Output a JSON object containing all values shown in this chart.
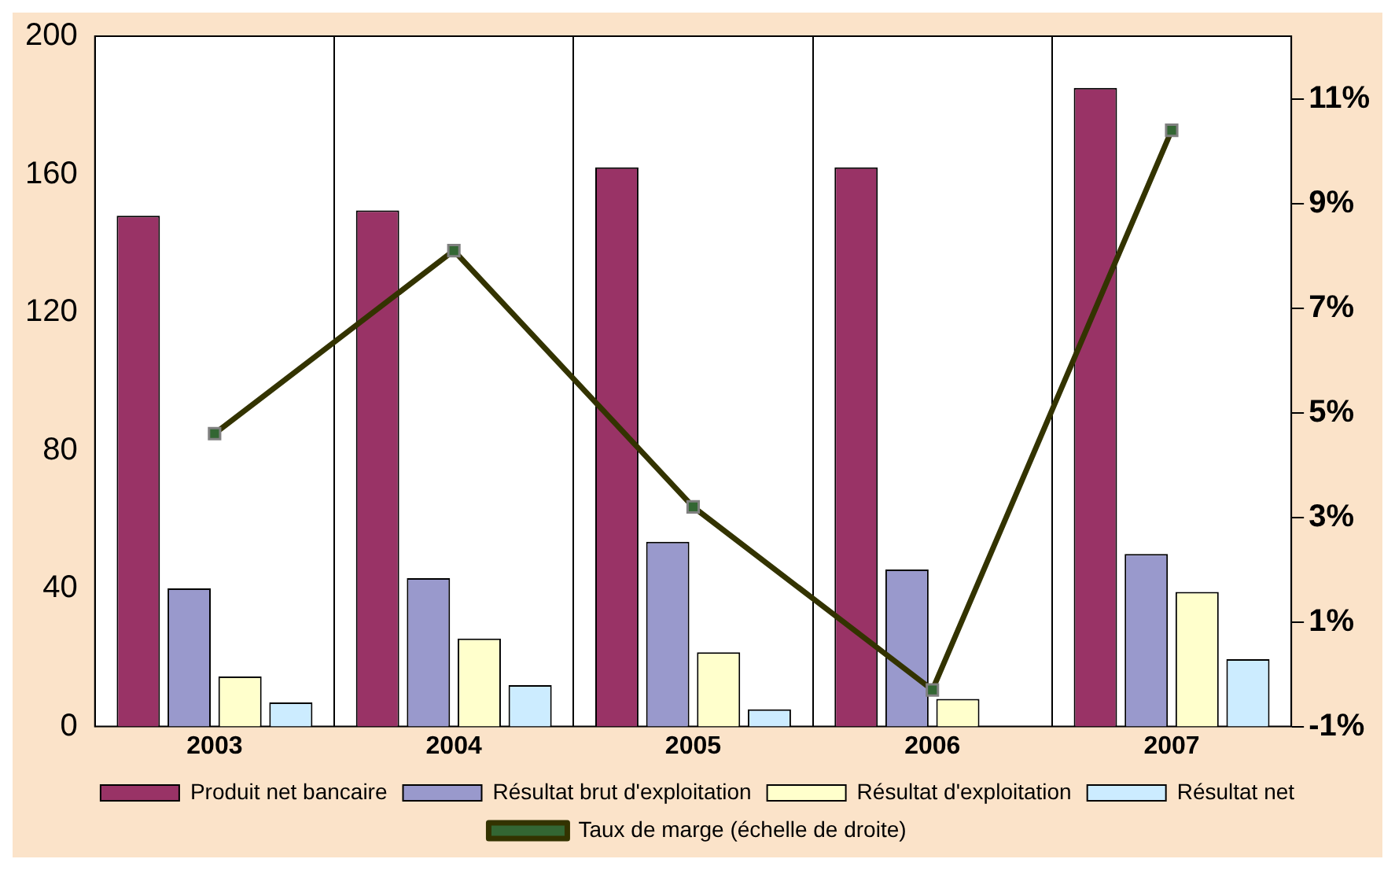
{
  "chart_data": {
    "type": "bar",
    "categories": [
      "2003",
      "2004",
      "2005",
      "2006",
      "2007"
    ],
    "series": [
      {
        "name": "Produit net bancaire",
        "color": "#993366",
        "values": [
          148,
          149.5,
          162,
          162,
          185
        ]
      },
      {
        "name": "Résultat brut d'exploitation",
        "color": "#9999cc",
        "values": [
          40,
          43,
          53.5,
          45.5,
          50
        ]
      },
      {
        "name": "Résultat d'exploitation",
        "color": "#ffffcc",
        "values": [
          14.5,
          25.5,
          21.5,
          8,
          39
        ]
      },
      {
        "name": "Résultat net",
        "color": "#ccecff",
        "values": [
          7,
          12,
          5,
          0,
          19.5
        ]
      },
      {
        "name": "Taux de marge (échelle de droite)",
        "type": "line",
        "axis": "y2",
        "color": "#333300",
        "marker": "square",
        "values": [
          4.6,
          8.1,
          3.2,
          -0.3,
          10.4
        ]
      }
    ],
    "ylim": [
      0,
      200
    ],
    "yticks": [
      0,
      40,
      80,
      120,
      160,
      200
    ],
    "y2lim": [
      -1,
      12.2
    ],
    "y2ticks": [
      {
        "value": -1,
        "label": "-1%"
      },
      {
        "value": 1,
        "label": "1%"
      },
      {
        "value": 3,
        "label": "3%"
      },
      {
        "value": 5,
        "label": "5%"
      },
      {
        "value": 7,
        "label": "7%"
      },
      {
        "value": 9,
        "label": "9%"
      },
      {
        "value": 11,
        "label": "11%"
      }
    ],
    "grid": "x",
    "legend": "bottom"
  }
}
